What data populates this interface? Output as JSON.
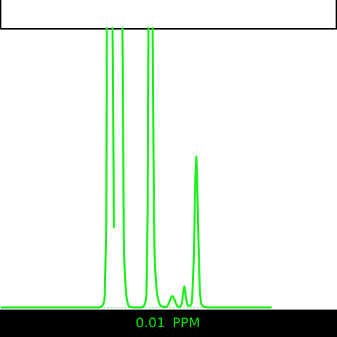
{
  "header": {
    "title": ""
  },
  "spectrum": {
    "trace_color": "#22ee22",
    "background_color": "#ffffff"
  },
  "status_bar": {
    "scale_value": "0.01",
    "scale_unit": "PPM"
  }
}
